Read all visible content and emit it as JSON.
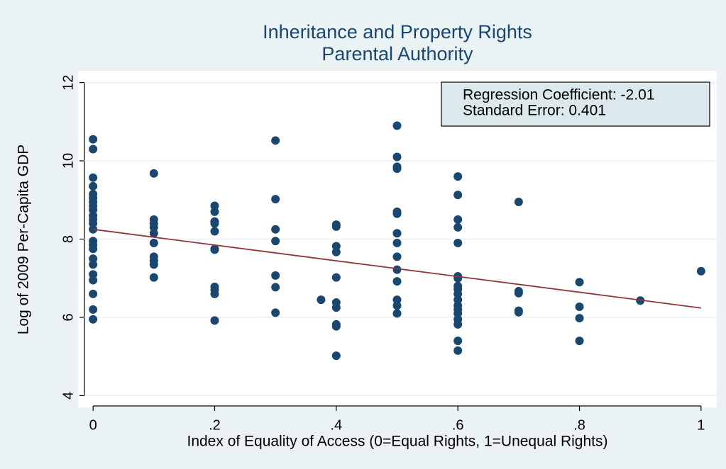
{
  "chart_data": {
    "type": "scatter",
    "title": [
      "Inheritance and Property Rights",
      "Parental Authority"
    ],
    "x_label": "Index of Equality of Access (0=Equal Rights, 1=Unequal Rights)",
    "y_label": "Log of 2009 Per-Capita GDP",
    "annotations": [
      "Regression Coefficient: -2.01",
      "Standard Error: 0.401"
    ],
    "color": "#1a476f",
    "x": [
      0,
      0,
      0,
      0,
      0,
      0,
      0,
      0,
      0,
      0,
      0,
      0,
      0,
      0,
      0,
      0,
      0,
      0,
      0,
      0,
      0,
      0,
      0,
      0.1,
      0.1,
      0.1,
      0.1,
      0.1,
      0.1,
      0.1,
      0.1,
      0.1,
      0.1,
      0.2,
      0.2,
      0.2,
      0.2,
      0.2,
      0.2,
      0.2,
      0.2,
      0.2,
      0.2,
      0.2,
      0.3,
      0.3,
      0.3,
      0.3,
      0.3,
      0.3,
      0.3,
      0.375,
      0.4,
      0.4,
      0.4,
      0.4,
      0.4,
      0.4,
      0.4,
      0.4,
      0.4,
      0.4,
      0.5,
      0.5,
      0.5,
      0.5,
      0.5,
      0.5,
      0.5,
      0.5,
      0.5,
      0.5,
      0.5,
      0.5,
      0.5,
      0.5,
      0.6,
      0.6,
      0.6,
      0.6,
      0.6,
      0.6,
      0.6,
      0.6,
      0.6,
      0.6,
      0.6,
      0.6,
      0.6,
      0.6,
      0.6,
      0.6,
      0.6,
      0.6,
      0.7,
      0.7,
      0.7,
      0.7,
      0.7,
      0.8,
      0.8,
      0.8,
      0.8,
      0.9,
      1
    ],
    "y": [
      10.55,
      10.3,
      9.57,
      9.35,
      9.15,
      9.05,
      8.95,
      8.85,
      8.75,
      8.6,
      8.5,
      8.4,
      8.25,
      7.95,
      7.85,
      7.75,
      7.5,
      7.35,
      7.1,
      6.95,
      6.6,
      6.2,
      5.95,
      9.68,
      8.5,
      8.4,
      8.3,
      8.15,
      7.9,
      7.55,
      7.45,
      7.35,
      7.02,
      8.85,
      8.7,
      8.45,
      8.4,
      8.2,
      7.75,
      7.73,
      6.78,
      6.7,
      6.6,
      5.92,
      10.52,
      9.02,
      8.25,
      7.95,
      7.07,
      6.77,
      6.12,
      6.45,
      8.37,
      8.32,
      7.82,
      7.67,
      7.02,
      6.38,
      6.25,
      5.82,
      5.77,
      5.02,
      10.9,
      10.1,
      9.85,
      9.8,
      8.7,
      8.65,
      8.15,
      7.9,
      7.55,
      7.22,
      6.92,
      6.45,
      6.3,
      6.1,
      9.6,
      9.13,
      8.5,
      8.3,
      7.9,
      7.05,
      7.0,
      6.8,
      6.72,
      6.6,
      6.45,
      6.3,
      6.2,
      6.1,
      5.95,
      5.82,
      5.4,
      5.15,
      8.95,
      6.67,
      6.62,
      6.17,
      6.13,
      6.9,
      6.27,
      5.98,
      5.4,
      6.43,
      7.18
    ],
    "regression_line": {
      "color": "#90353b",
      "x": [
        0,
        1
      ],
      "y": [
        8.25,
        6.24
      ]
    },
    "xlim": [
      -0.02,
      1.02
    ],
    "ylim": [
      3.7,
      12.3
    ],
    "xticks": [
      0,
      {
        "value": 0.2,
        "label": ".2"
      },
      {
        "value": 0.4,
        "label": ".4"
      },
      {
        "value": 0.6,
        "label": ".6"
      },
      {
        "value": 0.8,
        "label": ".8"
      },
      1
    ],
    "yticks": [
      4,
      6,
      8,
      10,
      12
    ],
    "grid": true
  }
}
